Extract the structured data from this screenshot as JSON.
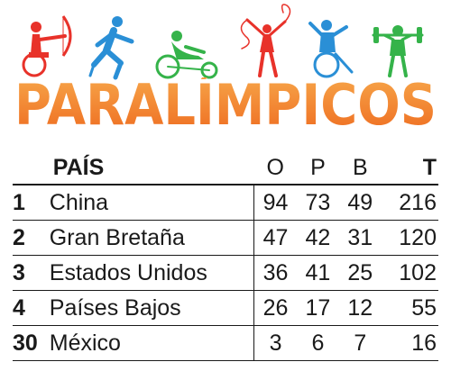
{
  "title": "PARALÍMPICOS",
  "colors": {
    "title_start": "#f7a84b",
    "title_end": "#ee6a1f",
    "red": "#e8322a",
    "blue": "#2a8fd6",
    "green": "#35b34a",
    "text": "#1a1a1a"
  },
  "pictograms": [
    "archery-icon",
    "running-icon",
    "handcycling-icon",
    "rhythmic-gymnastics-icon",
    "wheelchair-athlete-icon",
    "powerlifting-icon"
  ],
  "table": {
    "headers": {
      "country": "PAÍS",
      "gold": "O",
      "silver": "P",
      "bronze": "B",
      "total": "T"
    },
    "rows": [
      {
        "rank": "1",
        "country": "China",
        "gold": "94",
        "silver": "73",
        "bronze": "49",
        "total": "216"
      },
      {
        "rank": "2",
        "country": "Gran Bretaña",
        "gold": "47",
        "silver": "42",
        "bronze": "31",
        "total": "120"
      },
      {
        "rank": "3",
        "country": "Estados Unidos",
        "gold": "36",
        "silver": "41",
        "bronze": "25",
        "total": "102"
      },
      {
        "rank": "4",
        "country": "Países Bajos",
        "gold": "26",
        "silver": "17",
        "bronze": "12",
        "total": "55"
      },
      {
        "rank": "30",
        "country": "México",
        "gold": "3",
        "silver": "6",
        "bronze": "7",
        "total": "16"
      }
    ]
  }
}
